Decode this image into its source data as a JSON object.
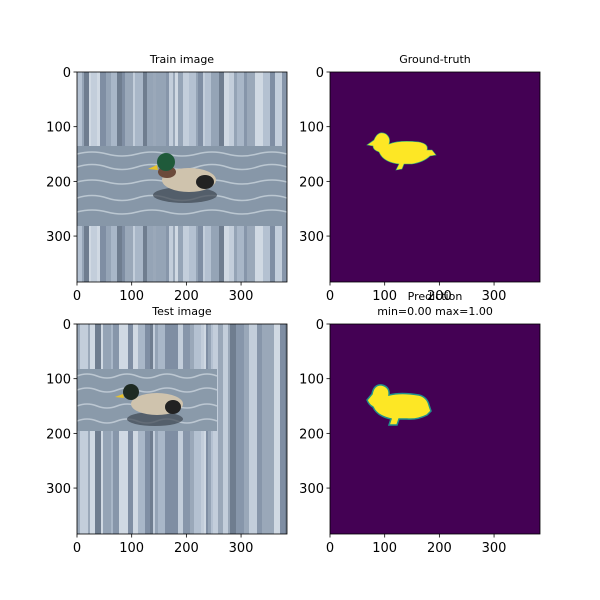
{
  "chart_data": [
    {
      "type": "image",
      "title": "Train image",
      "xlim": [
        0,
        384
      ],
      "ylim": [
        384,
        0
      ],
      "xticks": [
        0,
        100,
        200,
        300
      ],
      "yticks": [
        0,
        100,
        200,
        300
      ]
    },
    {
      "type": "image",
      "title": "Ground-truth",
      "xlim": [
        0,
        384
      ],
      "ylim": [
        384,
        0
      ],
      "xticks": [
        0,
        100,
        200,
        300
      ],
      "yticks": [
        0,
        100,
        200,
        300
      ]
    },
    {
      "type": "image",
      "title": "Test image",
      "xlim": [
        0,
        384
      ],
      "ylim": [
        384,
        0
      ],
      "xticks": [
        0,
        100,
        200,
        300
      ],
      "yticks": [
        0,
        100,
        200,
        300
      ]
    },
    {
      "type": "image",
      "title": "Prediction",
      "subtitle": "min=0.00 max=1.00",
      "xlim": [
        0,
        384
      ],
      "ylim": [
        384,
        0
      ],
      "xticks": [
        0,
        100,
        200,
        300
      ],
      "yticks": [
        0,
        100,
        200,
        300
      ]
    }
  ]
}
